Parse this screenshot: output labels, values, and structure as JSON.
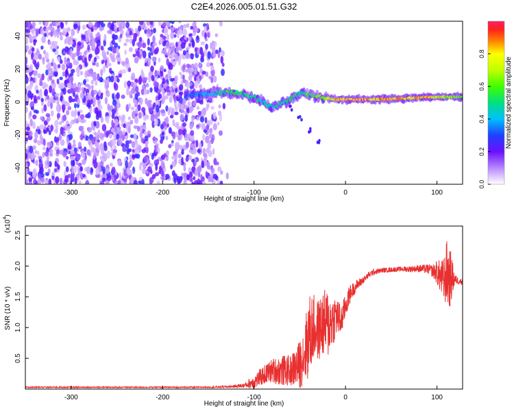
{
  "page_title": "C2E4.2026.005.01.51.G32",
  "colors": {
    "snr_line": "#e83030",
    "axis": "#000000",
    "spectro_weak": "#c8a0ff",
    "spectro_mid": "#6a10ff",
    "spectro_strong": "#ff2020"
  },
  "chart_data": [
    {
      "type": "heatmap",
      "title": "C2E4.2026.005.01.51.G32",
      "xlabel": "Height of straight line (km)",
      "ylabel": "Frequency (Hz)",
      "xlim": [
        -350,
        128
      ],
      "ylim": [
        -50,
        49
      ],
      "xticks": [
        -300,
        -200,
        -100,
        0,
        100
      ],
      "yticks": [
        -40,
        -20,
        0,
        20,
        40
      ],
      "xtick_labels": [
        "-300",
        "-200",
        "-100",
        "0",
        "100"
      ],
      "ytick_labels": [
        "-40",
        "-20",
        "0",
        "20",
        "40"
      ],
      "colorbar": {
        "label": "Normalized spectral amplitude",
        "range": [
          0,
          1
        ],
        "ticks": [
          0.0,
          0.2,
          0.4,
          0.6,
          0.8
        ],
        "tick_labels": [
          "0.0",
          "0.2",
          "0.4",
          "0.6",
          "0.8"
        ],
        "colormap": [
          "#ffffff",
          "#c8a0ff",
          "#6a10ff",
          "#2040ff",
          "#00c0ff",
          "#00e080",
          "#40ff00",
          "#c0ff00",
          "#ffff00",
          "#ff8000",
          "#ff2020",
          "#ff2060"
        ]
      },
      "features": {
        "noise_region_x": [
          -350,
          -128
        ],
        "signal_band": [
          {
            "x": -175,
            "f": 4,
            "amp": 0.3
          },
          {
            "x": -150,
            "f": 5,
            "amp": 0.4
          },
          {
            "x": -125,
            "f": 6,
            "amp": 0.55
          },
          {
            "x": -100,
            "f": 3,
            "amp": 0.5
          },
          {
            "x": -80,
            "f": -3,
            "amp": 0.45
          },
          {
            "x": -65,
            "f": 0,
            "amp": 0.5
          },
          {
            "x": -50,
            "f": 5,
            "amp": 0.5
          },
          {
            "x": -30,
            "f": 3,
            "amp": 0.6
          },
          {
            "x": -10,
            "f": 1.5,
            "amp": 0.85
          },
          {
            "x": 20,
            "f": 1.5,
            "amp": 0.9
          },
          {
            "x": 60,
            "f": 2,
            "amp": 0.85
          },
          {
            "x": 90,
            "f": 3,
            "amp": 0.9
          },
          {
            "x": 110,
            "f": 3,
            "amp": 0.7
          },
          {
            "x": 128,
            "f": 3,
            "amp": 0.6
          }
        ],
        "branch": [
          {
            "x": -60,
            "f": -4
          },
          {
            "x": -50,
            "f": -10
          },
          {
            "x": -40,
            "f": -17
          },
          {
            "x": -30,
            "f": -24
          }
        ]
      }
    },
    {
      "type": "line",
      "xlabel": "Height of straight line (km)",
      "ylabel": "SNR (10 * v/v)",
      "multiplier_label": "(x10",
      "multiplier_exp": "4",
      "multiplier_close": ")",
      "xlim": [
        -350,
        128
      ],
      "ylim": [
        0,
        2.65
      ],
      "xticks": [
        -300,
        -200,
        -100,
        0,
        100
      ],
      "xtick_labels": [
        "-300",
        "-200",
        "-100",
        "0",
        "100"
      ],
      "yticks": [
        0.5,
        1.0,
        1.5,
        2.0,
        2.5
      ],
      "ytick_labels": [
        "0.5",
        "1.0",
        "1.5",
        "2.0",
        "2.5"
      ],
      "series": [
        {
          "name": "SNR",
          "x": [
            -350,
            -300,
            -250,
            -200,
            -150,
            -125,
            -110,
            -100,
            -90,
            -80,
            -70,
            -60,
            -50,
            -45,
            -40,
            -35,
            -30,
            -25,
            -20,
            -15,
            -10,
            -5,
            0,
            5,
            10,
            15,
            20,
            25,
            30,
            40,
            50,
            60,
            70,
            80,
            90,
            95,
            100,
            105,
            108,
            110,
            112,
            115,
            118,
            120,
            125,
            128
          ],
          "values": [
            0.03,
            0.03,
            0.03,
            0.03,
            0.03,
            0.04,
            0.06,
            0.12,
            0.22,
            0.3,
            0.3,
            0.3,
            0.4,
            0.6,
            0.85,
            1.0,
            0.95,
            1.05,
            1.05,
            1.1,
            1.2,
            1.1,
            1.35,
            1.55,
            1.65,
            1.72,
            1.78,
            1.85,
            1.9,
            1.93,
            1.94,
            1.95,
            1.95,
            1.96,
            1.95,
            1.92,
            1.9,
            1.8,
            1.75,
            1.9,
            1.85,
            1.8,
            1.8,
            1.78,
            1.75,
            1.75
          ],
          "spread": [
            0.01,
            0.01,
            0.01,
            0.01,
            0.01,
            0.02,
            0.04,
            0.12,
            0.15,
            0.2,
            0.25,
            0.25,
            0.4,
            0.5,
            0.7,
            0.55,
            0.5,
            0.55,
            0.6,
            0.45,
            0.35,
            0.25,
            0.2,
            0.15,
            0.1,
            0.08,
            0.06,
            0.05,
            0.05,
            0.04,
            0.04,
            0.04,
            0.05,
            0.06,
            0.08,
            0.1,
            0.2,
            0.3,
            0.4,
            0.5,
            0.6,
            0.45,
            0.2,
            0.08,
            0.05,
            0.05
          ]
        }
      ]
    }
  ]
}
